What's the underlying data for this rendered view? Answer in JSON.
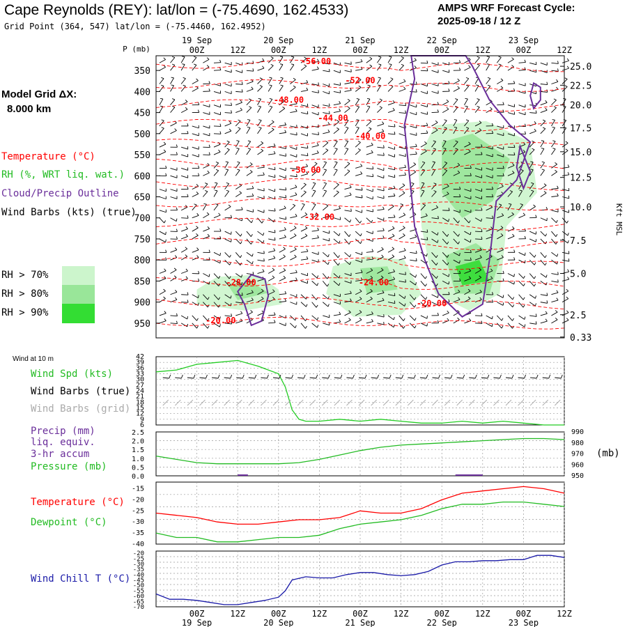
{
  "header": {
    "title": "Cape Reynolds (REY):  lat/lon = (-75.4690, 162.4533)",
    "grid_point": "Grid Point (364, 547) lat/lon = (-75.4460, 162.4952)",
    "cycle_line1": "AMPS WRF Forecast Cycle:",
    "cycle_line2": "2025-09-18 / 12  Z"
  },
  "left_legend": {
    "model_grid_line1": "Model Grid ΔX:",
    "model_grid_line2": "8.000 km",
    "temperature": "Temperature (°C)",
    "rh": "RH (%, WRT liq. wat.)",
    "cloud": "Cloud/Precip Outline",
    "wind_barbs": "Wind Barbs (kts) (true)",
    "rh70": "RH > 70%",
    "rh80": "RH > 80%",
    "rh90": "RH > 90%",
    "wind_10m": "Wind at 10 m",
    "wind_spd": "Wind Spd (kts)",
    "barbs_true": "Wind Barbs (true)",
    "barbs_grid": "Wind Barbs (grid)",
    "precip1": "Precip (mm)",
    "precip2": "liq. equiv.",
    "precip3": "3-hr accum",
    "pressure": "Pressure (mb)",
    "pressure_unit": "(mb)",
    "temp2": "Temperature (°C)",
    "dewpoint": "Dewpoint (°C)",
    "windchill": "Wind Chill T (°C)"
  },
  "colors": {
    "temperature": "#ff0000",
    "rh70": "#ccf5cc",
    "rh80": "#99e699",
    "rh90": "#33dd33",
    "cloud": "#6a2e9a",
    "wind_spd": "#22cc22",
    "barb_true": "#000000",
    "barb_grid": "#aaaaaa",
    "precip": "#6a2e9a",
    "pressure": "#22bb22",
    "dewpoint": "#22bb22",
    "windchill": "#1a1aa8"
  },
  "chart_data": {
    "type": "line",
    "time_axis": {
      "ticks": [
        "00Z",
        "12Z",
        "00Z",
        "12Z",
        "00Z",
        "12Z",
        "00Z",
        "12Z",
        "00Z",
        "12Z"
      ],
      "hours": [
        12,
        24,
        36,
        48,
        60,
        72,
        84,
        96,
        108,
        120
      ],
      "dates": [
        {
          "label": "19 Sep",
          "hour": 12
        },
        {
          "label": "20 Sep",
          "hour": 36
        },
        {
          "label": "21 Sep",
          "hour": 60
        },
        {
          "label": "22 Sep",
          "hour": 84
        },
        {
          "label": "23 Sep",
          "hour": 108
        }
      ],
      "range_hours": [
        0,
        120
      ]
    },
    "cross_section": {
      "p_axis_label": "P (mb)",
      "pressure_levels": [
        350,
        400,
        450,
        500,
        550,
        600,
        650,
        700,
        750,
        800,
        850,
        900,
        950
      ],
      "plim": [
        315,
        985
      ],
      "height_axis_label": "Kft MSL",
      "height_ticks": [
        "25.0",
        "22.5",
        "20.0",
        "17.5",
        "15.0",
        "12.5",
        "10.0",
        "7.5",
        "5.0",
        "2.5",
        "0.33"
      ],
      "height_tick_pressures": [
        340,
        385,
        432,
        486,
        543,
        604,
        674,
        753,
        832,
        930,
        983
      ],
      "temperature_labels": [
        {
          "text": "-56.00",
          "hour": 47,
          "p": 335
        },
        {
          "text": "-52.00",
          "hour": 60,
          "p": 380
        },
        {
          "text": "-48.00",
          "hour": 39,
          "p": 427
        },
        {
          "text": "-44.00",
          "hour": 52,
          "p": 470
        },
        {
          "text": "-40.00",
          "hour": 63,
          "p": 513
        },
        {
          "text": "-36.00",
          "hour": 44,
          "p": 593
        },
        {
          "text": "-32.00",
          "hour": 48,
          "p": 705
        },
        {
          "text": "-28.00",
          "hour": 25,
          "p": 860
        },
        {
          "text": "-24.00",
          "hour": 64,
          "p": 860
        },
        {
          "text": "-20.00",
          "hour": 81,
          "p": 910
        },
        {
          "text": "-20.00",
          "hour": 19,
          "p": 950
        }
      ],
      "rh_regions": [
        {
          "level": 70,
          "points": [
            [
              12,
              870
            ],
            [
              18,
              840
            ],
            [
              30,
              835
            ],
            [
              36,
              870
            ],
            [
              37,
              905
            ],
            [
              26,
              920
            ],
            [
              12,
              905
            ]
          ]
        },
        {
          "level": 80,
          "points": [
            [
              21,
              858
            ],
            [
              28,
              852
            ],
            [
              33,
              878
            ],
            [
              24,
              895
            ]
          ]
        },
        {
          "level": 70,
          "points": [
            [
              52,
              815
            ],
            [
              62,
              790
            ],
            [
              73,
              800
            ],
            [
              78,
              880
            ],
            [
              72,
              930
            ],
            [
              58,
              935
            ],
            [
              50,
              880
            ]
          ]
        },
        {
          "level": 80,
          "points": [
            [
              60,
              820
            ],
            [
              68,
              815
            ],
            [
              71,
              870
            ],
            [
              62,
              880
            ]
          ]
        },
        {
          "level": 70,
          "points": [
            [
              77,
              560
            ],
            [
              82,
              480
            ],
            [
              97,
              470
            ],
            [
              110,
              520
            ],
            [
              112,
              640
            ],
            [
              103,
              720
            ],
            [
              101,
              880
            ],
            [
              92,
              920
            ],
            [
              82,
              880
            ],
            [
              78,
              720
            ]
          ]
        },
        {
          "level": 80,
          "points": [
            [
              84,
              520
            ],
            [
              93,
              500
            ],
            [
              104,
              560
            ],
            [
              99,
              660
            ],
            [
              90,
              700
            ],
            [
              84,
              640
            ]
          ]
        },
        {
          "level": 80,
          "points": [
            [
              85,
              790
            ],
            [
              94,
              760
            ],
            [
              101,
              800
            ],
            [
              98,
              880
            ],
            [
              88,
              880
            ]
          ]
        },
        {
          "level": 90,
          "points": [
            [
              88,
              815
            ],
            [
              95,
              800
            ],
            [
              98,
              850
            ],
            [
              90,
              860
            ]
          ]
        }
      ],
      "cloud_outlines": [
        {
          "points": [
            [
              28,
              835
            ],
            [
              32,
              845
            ],
            [
              33,
              885
            ],
            [
              31,
              945
            ],
            [
              28,
              955
            ],
            [
              26,
              905
            ],
            [
              24,
              875
            ]
          ]
        },
        {
          "points": [
            [
              75,
              315
            ],
            [
              76,
              370
            ],
            [
              73,
              480
            ],
            [
              74,
              560
            ],
            [
              75,
              640
            ],
            [
              76,
              720
            ],
            [
              79,
              800
            ],
            [
              83,
              880
            ],
            [
              90,
              935
            ],
            [
              96,
              905
            ],
            [
              98,
              800
            ],
            [
              100,
              660
            ],
            [
              106,
              610
            ],
            [
              110,
              520
            ],
            [
              104,
              480
            ],
            [
              98,
              420
            ],
            [
              93,
              340
            ],
            [
              91,
              315
            ]
          ]
        },
        {
          "points": [
            [
              111,
              380
            ],
            [
              113,
              390
            ],
            [
              113,
              420
            ],
            [
              111,
              440
            ],
            [
              110,
              410
            ]
          ]
        },
        {
          "points": [
            [
              107,
              530
            ],
            [
              110,
              590
            ],
            [
              108,
              630
            ],
            [
              106,
              580
            ]
          ]
        }
      ]
    },
    "surface_wind": {
      "label": "Wind at 10 m",
      "y_ticks": [
        42,
        39,
        36,
        33,
        30,
        27,
        24,
        21,
        18,
        15,
        12,
        9,
        6
      ],
      "ylim": [
        6,
        42
      ],
      "wind_speed_kts": {
        "hours": [
          0,
          6,
          12,
          18,
          24,
          30,
          36,
          38,
          40,
          42,
          44,
          48,
          54,
          60,
          66,
          72,
          78,
          84,
          90,
          96,
          102,
          108,
          114,
          120
        ],
        "values": [
          34,
          35,
          38,
          39,
          40,
          37,
          33,
          26,
          14,
          9,
          8,
          8,
          9,
          8,
          9,
          8,
          7,
          7,
          8,
          7,
          8,
          7,
          6,
          6
        ]
      }
    },
    "precip_pressure": {
      "precip_ticks": [
        "2.5",
        "2.0",
        "1.5",
        "1.0",
        "0.5",
        "0.0"
      ],
      "precip_lim": [
        0,
        2.5
      ],
      "pressure_ticks": [
        990,
        980,
        970,
        960,
        950
      ],
      "pressure_lim": [
        950,
        990
      ],
      "pressure_mb": {
        "hours": [
          0,
          6,
          12,
          18,
          24,
          30,
          36,
          42,
          48,
          54,
          60,
          66,
          72,
          78,
          84,
          90,
          96,
          102,
          108,
          114,
          120
        ],
        "values": [
          968,
          965,
          962,
          961,
          961,
          961,
          961,
          962,
          965,
          969,
          973,
          976,
          978,
          979,
          980,
          981,
          982,
          983,
          984,
          984,
          983
        ]
      },
      "precip_mm": {
        "hours": [
          24,
          27,
          88,
          96
        ],
        "values": [
          0.05,
          0.05,
          0.05,
          0.05
        ]
      }
    },
    "temperature_dewpoint": {
      "y_ticks": [
        -15,
        -20,
        -25,
        -30,
        -35,
        -40
      ],
      "ylim": [
        -40,
        -12
      ],
      "temperature_c": {
        "hours": [
          0,
          6,
          12,
          18,
          24,
          30,
          36,
          42,
          48,
          54,
          60,
          66,
          72,
          78,
          84,
          90,
          96,
          102,
          108,
          114,
          120
        ],
        "values": [
          -26,
          -27,
          -28,
          -30,
          -31,
          -31,
          -30,
          -29,
          -29,
          -28,
          -25,
          -26,
          -26,
          -24,
          -20,
          -17,
          -16,
          -15,
          -14,
          -15,
          -17
        ]
      },
      "dewpoint_c": {
        "hours": [
          0,
          6,
          12,
          18,
          24,
          30,
          36,
          42,
          48,
          54,
          60,
          66,
          72,
          78,
          84,
          90,
          96,
          102,
          108,
          114,
          120
        ],
        "values": [
          -35,
          -37,
          -37,
          -39,
          -39,
          -38,
          -37,
          -37,
          -36,
          -33,
          -31,
          -30,
          -29,
          -27,
          -24,
          -22,
          -22,
          -21,
          -21,
          -22,
          -23
        ]
      }
    },
    "wind_chill": {
      "y_ticks": [
        -20,
        -25,
        -30,
        -35,
        -40,
        -45,
        -50,
        -55,
        -60,
        -65,
        -70
      ],
      "ylim": [
        -70,
        -18
      ],
      "wind_chill_c": {
        "hours": [
          0,
          4,
          8,
          12,
          16,
          20,
          24,
          28,
          32,
          36,
          38,
          40,
          44,
          48,
          52,
          56,
          60,
          64,
          68,
          72,
          76,
          80,
          84,
          88,
          92,
          96,
          100,
          104,
          108,
          112,
          116,
          120
        ],
        "values": [
          -58,
          -63,
          -63,
          -64,
          -66,
          -68,
          -68,
          -66,
          -64,
          -61,
          -55,
          -45,
          -42,
          -43,
          -43,
          -40,
          -38,
          -38,
          -40,
          -41,
          -40,
          -37,
          -31,
          -28,
          -28,
          -27,
          -27,
          -26,
          -26,
          -22,
          -22,
          -24
        ]
      }
    }
  }
}
